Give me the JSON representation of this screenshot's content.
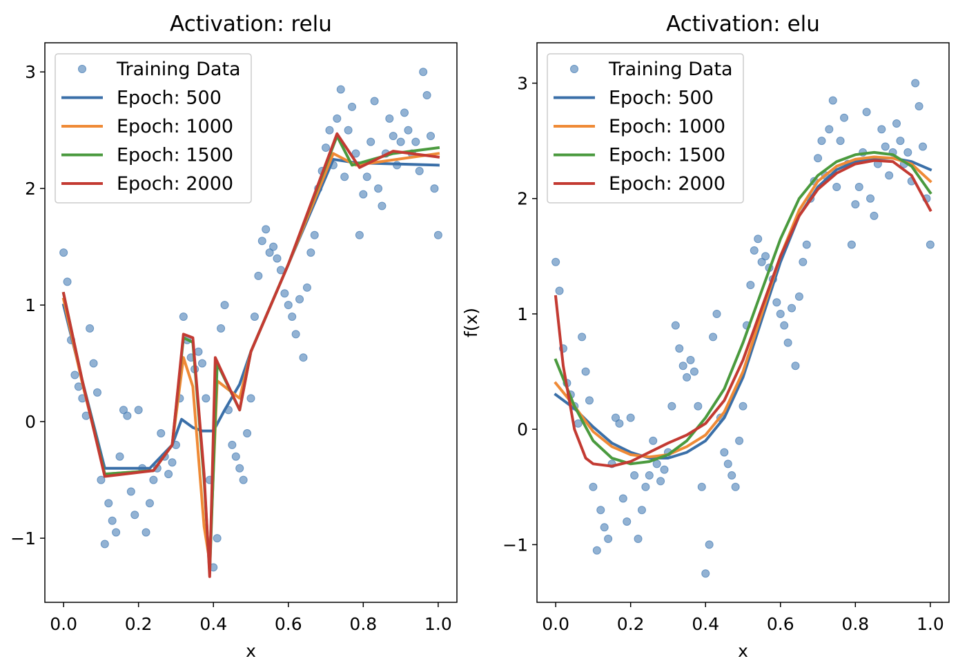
{
  "chart_data": [
    {
      "type": "line",
      "title": "Activation: relu",
      "xlabel": "x",
      "ylabel": "",
      "xlim": [
        -0.05,
        1.05
      ],
      "ylim": [
        -1.55,
        3.25
      ],
      "xticks": [
        0.0,
        0.2,
        0.4,
        0.6,
        0.8,
        1.0
      ],
      "xtick_labels": [
        "0.0",
        "0.2",
        "0.4",
        "0.6",
        "0.8",
        "1.0"
      ],
      "yticks": [
        -1,
        0,
        1,
        2,
        3
      ],
      "ytick_labels": [
        "−1",
        "0",
        "1",
        "2",
        "3"
      ],
      "legend": {
        "location": "upper-left",
        "entries": [
          "Training Data",
          "Epoch: 500",
          "Epoch: 1000",
          "Epoch: 1500",
          "Epoch: 2000"
        ]
      },
      "scatter": {
        "name": "Training Data",
        "color": "#4a7fb6",
        "x": [
          0.0,
          0.01,
          0.02,
          0.03,
          0.04,
          0.05,
          0.06,
          0.07,
          0.08,
          0.09,
          0.1,
          0.11,
          0.12,
          0.13,
          0.14,
          0.15,
          0.16,
          0.17,
          0.18,
          0.19,
          0.2,
          0.21,
          0.22,
          0.23,
          0.24,
          0.25,
          0.26,
          0.27,
          0.28,
          0.29,
          0.3,
          0.31,
          0.32,
          0.33,
          0.34,
          0.35,
          0.36,
          0.37,
          0.38,
          0.39,
          0.4,
          0.41,
          0.42,
          0.43,
          0.44,
          0.45,
          0.46,
          0.47,
          0.48,
          0.49,
          0.5,
          0.51,
          0.52,
          0.53,
          0.54,
          0.55,
          0.56,
          0.57,
          0.58,
          0.59,
          0.6,
          0.61,
          0.62,
          0.63,
          0.64,
          0.65,
          0.66,
          0.67,
          0.68,
          0.69,
          0.7,
          0.71,
          0.72,
          0.73,
          0.74,
          0.75,
          0.76,
          0.77,
          0.78,
          0.79,
          0.8,
          0.81,
          0.82,
          0.83,
          0.84,
          0.85,
          0.86,
          0.87,
          0.88,
          0.89,
          0.9,
          0.91,
          0.92,
          0.93,
          0.94,
          0.95,
          0.96,
          0.97,
          0.98,
          0.99,
          1.0
        ],
        "y": [
          1.45,
          1.2,
          0.7,
          0.4,
          0.3,
          0.2,
          0.05,
          0.8,
          0.5,
          0.25,
          -0.5,
          -1.05,
          -0.7,
          -0.85,
          -0.95,
          -0.3,
          0.1,
          0.05,
          -0.6,
          -0.8,
          0.1,
          -0.4,
          -0.95,
          -0.7,
          -0.5,
          -0.4,
          -0.1,
          -0.3,
          -0.45,
          -0.35,
          -0.2,
          0.2,
          0.9,
          0.7,
          0.55,
          0.45,
          0.6,
          0.5,
          0.2,
          -0.5,
          -1.25,
          -1.0,
          0.8,
          1.0,
          0.1,
          -0.2,
          -0.3,
          -0.4,
          -0.5,
          -0.1,
          0.2,
          0.9,
          1.25,
          1.55,
          1.65,
          1.45,
          1.5,
          1.4,
          1.3,
          1.1,
          1.0,
          0.9,
          0.75,
          1.05,
          0.55,
          1.15,
          1.45,
          1.6,
          2.0,
          2.15,
          2.35,
          2.5,
          2.2,
          2.6,
          2.85,
          2.1,
          2.5,
          2.7,
          2.3,
          1.6,
          1.95,
          2.1,
          2.4,
          2.75,
          2.0,
          1.85,
          2.3,
          2.6,
          2.45,
          2.2,
          2.4,
          2.65,
          2.5,
          2.3,
          2.4,
          2.15,
          3.0,
          2.8,
          2.45,
          2.0,
          1.6
        ]
      },
      "series": [
        {
          "name": "Epoch: 500",
          "color": "#3a6fa8",
          "x": [
            0.0,
            0.05,
            0.11,
            0.23,
            0.29,
            0.315,
            0.345,
            0.37,
            0.4,
            0.43,
            0.47,
            0.5,
            0.6,
            0.72,
            0.78,
            1.0
          ],
          "y": [
            1.0,
            0.35,
            -0.4,
            -0.4,
            -0.2,
            0.02,
            -0.05,
            -0.08,
            -0.08,
            0.1,
            0.32,
            0.6,
            1.35,
            2.25,
            2.22,
            2.2
          ]
        },
        {
          "name": "Epoch: 1000",
          "color": "#ef8a36",
          "x": [
            0.0,
            0.05,
            0.11,
            0.24,
            0.29,
            0.32,
            0.345,
            0.375,
            0.39,
            0.41,
            0.47,
            0.5,
            0.6,
            0.72,
            0.78,
            1.0
          ],
          "y": [
            1.05,
            0.33,
            -0.45,
            -0.42,
            -0.2,
            0.55,
            0.3,
            -0.9,
            -1.2,
            0.35,
            0.2,
            0.6,
            1.35,
            2.3,
            2.2,
            2.3
          ]
        },
        {
          "name": "Epoch: 1500",
          "color": "#4a9a3e",
          "x": [
            0.0,
            0.05,
            0.11,
            0.24,
            0.29,
            0.32,
            0.345,
            0.375,
            0.39,
            0.41,
            0.47,
            0.5,
            0.6,
            0.73,
            0.77,
            0.88,
            1.0
          ],
          "y": [
            1.1,
            0.35,
            -0.45,
            -0.42,
            -0.2,
            0.72,
            0.68,
            -0.5,
            -1.3,
            0.5,
            0.1,
            0.6,
            1.35,
            2.45,
            2.2,
            2.3,
            2.35
          ]
        },
        {
          "name": "Epoch: 2000",
          "color": "#c33a32",
          "x": [
            0.0,
            0.05,
            0.11,
            0.24,
            0.29,
            0.32,
            0.345,
            0.375,
            0.39,
            0.405,
            0.47,
            0.5,
            0.6,
            0.73,
            0.79,
            0.88,
            1.0
          ],
          "y": [
            1.1,
            0.35,
            -0.47,
            -0.42,
            -0.2,
            0.75,
            0.72,
            -0.45,
            -1.33,
            0.55,
            0.1,
            0.6,
            1.35,
            2.47,
            2.18,
            2.32,
            2.27
          ]
        }
      ]
    },
    {
      "type": "line",
      "title": "Activation: elu",
      "xlabel": "x",
      "ylabel": "f(x)",
      "xlim": [
        -0.05,
        1.05
      ],
      "ylim": [
        -1.5,
        3.35
      ],
      "xticks": [
        0.0,
        0.2,
        0.4,
        0.6,
        0.8,
        1.0
      ],
      "xtick_labels": [
        "0.0",
        "0.2",
        "0.4",
        "0.6",
        "0.8",
        "1.0"
      ],
      "yticks": [
        -1,
        0,
        1,
        2,
        3
      ],
      "ytick_labels": [
        "−1",
        "0",
        "1",
        "2",
        "3"
      ],
      "legend": {
        "location": "upper-left",
        "entries": [
          "Training Data",
          "Epoch: 500",
          "Epoch: 1000",
          "Epoch: 1500",
          "Epoch: 2000"
        ]
      },
      "scatter": {
        "name": "Training Data",
        "color": "#4a7fb6",
        "x": [
          0.0,
          0.01,
          0.02,
          0.03,
          0.04,
          0.05,
          0.06,
          0.07,
          0.08,
          0.09,
          0.1,
          0.11,
          0.12,
          0.13,
          0.14,
          0.15,
          0.16,
          0.17,
          0.18,
          0.19,
          0.2,
          0.21,
          0.22,
          0.23,
          0.24,
          0.25,
          0.26,
          0.27,
          0.28,
          0.29,
          0.3,
          0.31,
          0.32,
          0.33,
          0.34,
          0.35,
          0.36,
          0.37,
          0.38,
          0.39,
          0.4,
          0.41,
          0.42,
          0.43,
          0.44,
          0.45,
          0.46,
          0.47,
          0.48,
          0.49,
          0.5,
          0.51,
          0.52,
          0.53,
          0.54,
          0.55,
          0.56,
          0.57,
          0.58,
          0.59,
          0.6,
          0.61,
          0.62,
          0.63,
          0.64,
          0.65,
          0.66,
          0.67,
          0.68,
          0.69,
          0.7,
          0.71,
          0.72,
          0.73,
          0.74,
          0.75,
          0.76,
          0.77,
          0.78,
          0.79,
          0.8,
          0.81,
          0.82,
          0.83,
          0.84,
          0.85,
          0.86,
          0.87,
          0.88,
          0.89,
          0.9,
          0.91,
          0.92,
          0.93,
          0.94,
          0.95,
          0.96,
          0.97,
          0.98,
          0.99,
          1.0
        ],
        "y": [
          1.45,
          1.2,
          0.7,
          0.4,
          0.3,
          0.2,
          0.05,
          0.8,
          0.5,
          0.25,
          -0.5,
          -1.05,
          -0.7,
          -0.85,
          -0.95,
          -0.3,
          0.1,
          0.05,
          -0.6,
          -0.8,
          0.1,
          -0.4,
          -0.95,
          -0.7,
          -0.5,
          -0.4,
          -0.1,
          -0.3,
          -0.45,
          -0.35,
          -0.2,
          0.2,
          0.9,
          0.7,
          0.55,
          0.45,
          0.6,
          0.5,
          0.2,
          -0.5,
          -1.25,
          -1.0,
          0.8,
          1.0,
          0.1,
          -0.2,
          -0.3,
          -0.4,
          -0.5,
          -0.1,
          0.2,
          0.9,
          1.25,
          1.55,
          1.65,
          1.45,
          1.5,
          1.4,
          1.3,
          1.1,
          1.0,
          0.9,
          0.75,
          1.05,
          0.55,
          1.15,
          1.45,
          1.6,
          2.0,
          2.15,
          2.35,
          2.5,
          2.2,
          2.6,
          2.85,
          2.1,
          2.5,
          2.7,
          2.3,
          1.6,
          1.95,
          2.1,
          2.4,
          2.75,
          2.0,
          1.85,
          2.3,
          2.6,
          2.45,
          2.2,
          2.4,
          2.65,
          2.5,
          2.3,
          2.4,
          2.15,
          3.0,
          2.8,
          2.45,
          2.0,
          1.6
        ]
      },
      "series": [
        {
          "name": "Epoch: 500",
          "color": "#3a6fa8",
          "x": [
            0.0,
            0.05,
            0.1,
            0.15,
            0.2,
            0.25,
            0.3,
            0.35,
            0.4,
            0.45,
            0.5,
            0.55,
            0.6,
            0.65,
            0.7,
            0.75,
            0.8,
            0.85,
            0.9,
            0.95,
            1.0
          ],
          "y": [
            0.3,
            0.18,
            0.02,
            -0.12,
            -0.2,
            -0.25,
            -0.25,
            -0.2,
            -0.1,
            0.1,
            0.45,
            0.95,
            1.45,
            1.85,
            2.1,
            2.25,
            2.32,
            2.35,
            2.35,
            2.32,
            2.25
          ]
        },
        {
          "name": "Epoch: 1000",
          "color": "#ef8a36",
          "x": [
            0.0,
            0.05,
            0.1,
            0.15,
            0.2,
            0.25,
            0.3,
            0.35,
            0.4,
            0.45,
            0.5,
            0.55,
            0.6,
            0.65,
            0.7,
            0.75,
            0.8,
            0.85,
            0.9,
            0.95,
            1.0
          ],
          "y": [
            0.4,
            0.2,
            -0.02,
            -0.15,
            -0.22,
            -0.24,
            -0.22,
            -0.15,
            -0.05,
            0.15,
            0.5,
            1.0,
            1.5,
            1.9,
            2.15,
            2.28,
            2.34,
            2.36,
            2.35,
            2.3,
            2.15
          ]
        },
        {
          "name": "Epoch: 1500",
          "color": "#4a9a3e",
          "x": [
            0.0,
            0.05,
            0.1,
            0.15,
            0.2,
            0.25,
            0.3,
            0.35,
            0.4,
            0.45,
            0.5,
            0.55,
            0.6,
            0.65,
            0.7,
            0.75,
            0.8,
            0.85,
            0.9,
            0.95,
            1.0
          ],
          "y": [
            0.6,
            0.2,
            -0.1,
            -0.25,
            -0.3,
            -0.28,
            -0.22,
            -0.1,
            0.1,
            0.35,
            0.75,
            1.2,
            1.65,
            2.0,
            2.2,
            2.32,
            2.38,
            2.4,
            2.38,
            2.28,
            2.05
          ]
        },
        {
          "name": "Epoch: 2000",
          "color": "#c33a32",
          "x": [
            0.0,
            0.02,
            0.05,
            0.08,
            0.1,
            0.15,
            0.2,
            0.25,
            0.3,
            0.35,
            0.4,
            0.45,
            0.5,
            0.55,
            0.6,
            0.65,
            0.7,
            0.75,
            0.8,
            0.85,
            0.9,
            0.95,
            1.0
          ],
          "y": [
            1.15,
            0.55,
            0.0,
            -0.25,
            -0.3,
            -0.32,
            -0.28,
            -0.2,
            -0.12,
            -0.05,
            0.05,
            0.25,
            0.6,
            1.05,
            1.5,
            1.85,
            2.08,
            2.22,
            2.3,
            2.33,
            2.32,
            2.2,
            1.9
          ]
        }
      ]
    }
  ]
}
